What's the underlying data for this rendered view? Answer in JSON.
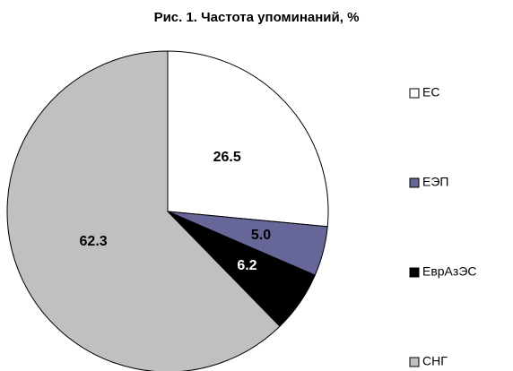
{
  "chart_data": {
    "type": "pie",
    "title": "Рис. 1. Частота упоминаний, %",
    "categories": [
      "ЕС",
      "ЕЭП",
      "ЕврАзЭС",
      "СНГ"
    ],
    "values": [
      26.5,
      5.0,
      6.2,
      62.3
    ],
    "value_labels": [
      "26.5",
      "5.0",
      "6.2",
      "62.3"
    ],
    "colors": [
      "#ffffff",
      "#666699",
      "#000000",
      "#c0c0c0"
    ],
    "legend": "right"
  }
}
